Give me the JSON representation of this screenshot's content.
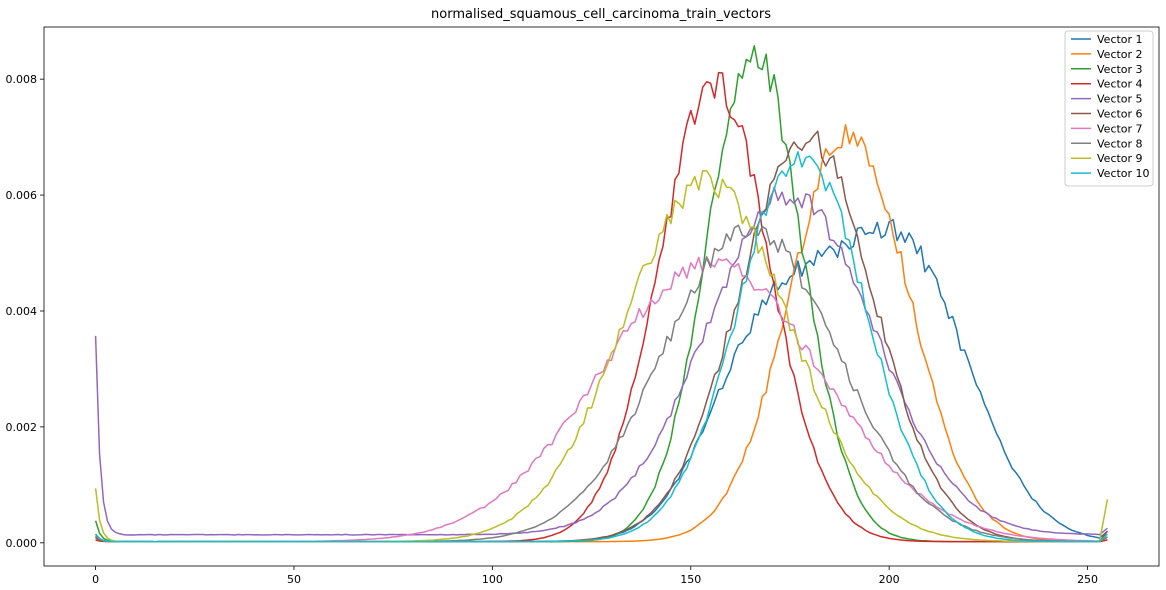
{
  "chart_data": {
    "type": "line",
    "title": "normalised_squamous_cell_carcinoma_train_vectors",
    "xlabel": "",
    "ylabel": "",
    "xlim": [
      -13,
      268
    ],
    "ylim": [
      -0.0004,
      0.0089
    ],
    "xticks": [
      0,
      50,
      100,
      150,
      200,
      250
    ],
    "yticks": [
      0.0,
      0.002,
      0.004,
      0.006,
      0.008
    ],
    "ytick_labels": [
      "0.000",
      "0.002",
      "0.004",
      "0.006",
      "0.008"
    ],
    "grid": false,
    "legend_position": "top-right",
    "series": [
      {
        "name": "Vector 1",
        "color": "#1f77b4",
        "y0": 0.00015,
        "y_end": 0.0002,
        "components": [
          {
            "a": 0.0035,
            "mu": 170,
            "sigma": 15
          },
          {
            "a": 0.005,
            "mu": 203,
            "sigma": 17
          }
        ]
      },
      {
        "name": "Vector 2",
        "color": "#ff7f0e",
        "y0": 8e-05,
        "y_end": 5e-05,
        "components": [
          {
            "a": 0.0071,
            "mu": 190,
            "sigma": 15
          }
        ]
      },
      {
        "name": "Vector 3",
        "color": "#2ca02c",
        "y0": 0.00038,
        "y_end": 0.0001,
        "components": [
          {
            "a": 0.0085,
            "mu": 166,
            "sigma": 12
          }
        ]
      },
      {
        "name": "Vector 4",
        "color": "#d62728",
        "y0": 5e-05,
        "y_end": 5e-05,
        "components": [
          {
            "a": 0.0079,
            "mu": 156,
            "sigma": 14
          }
        ]
      },
      {
        "name": "Vector 5",
        "color": "#9467bd",
        "y0": 0.00357,
        "y_end": 0.00025,
        "components": [
          {
            "a": 0.0059,
            "mu": 175,
            "sigma": 21
          }
        ]
      },
      {
        "name": "Vector 6",
        "color": "#8c564b",
        "y0": 0.0001,
        "y_end": 0.0002,
        "components": [
          {
            "a": 0.007,
            "mu": 179,
            "sigma": 17
          }
        ]
      },
      {
        "name": "Vector 7",
        "color": "#e377c2",
        "y0": 0.00015,
        "y_end": 0.0001,
        "components": [
          {
            "a": 0.0048,
            "mu": 155,
            "sigma": 28
          }
        ]
      },
      {
        "name": "Vector 8",
        "color": "#7f7f7f",
        "y0": 0.00012,
        "y_end": 0.0001,
        "components": [
          {
            "a": 0.0054,
            "mu": 165,
            "sigma": 22
          }
        ]
      },
      {
        "name": "Vector 9",
        "color": "#bcbd22",
        "y0": 0.00094,
        "y_end": 0.00075,
        "components": [
          {
            "a": 0.0062,
            "mu": 154,
            "sigma": 21
          }
        ]
      },
      {
        "name": "Vector 10",
        "color": "#17becf",
        "y0": 0.00015,
        "y_end": 0.00015,
        "components": [
          {
            "a": 0.0067,
            "mu": 178,
            "sigma": 16
          }
        ]
      }
    ]
  }
}
